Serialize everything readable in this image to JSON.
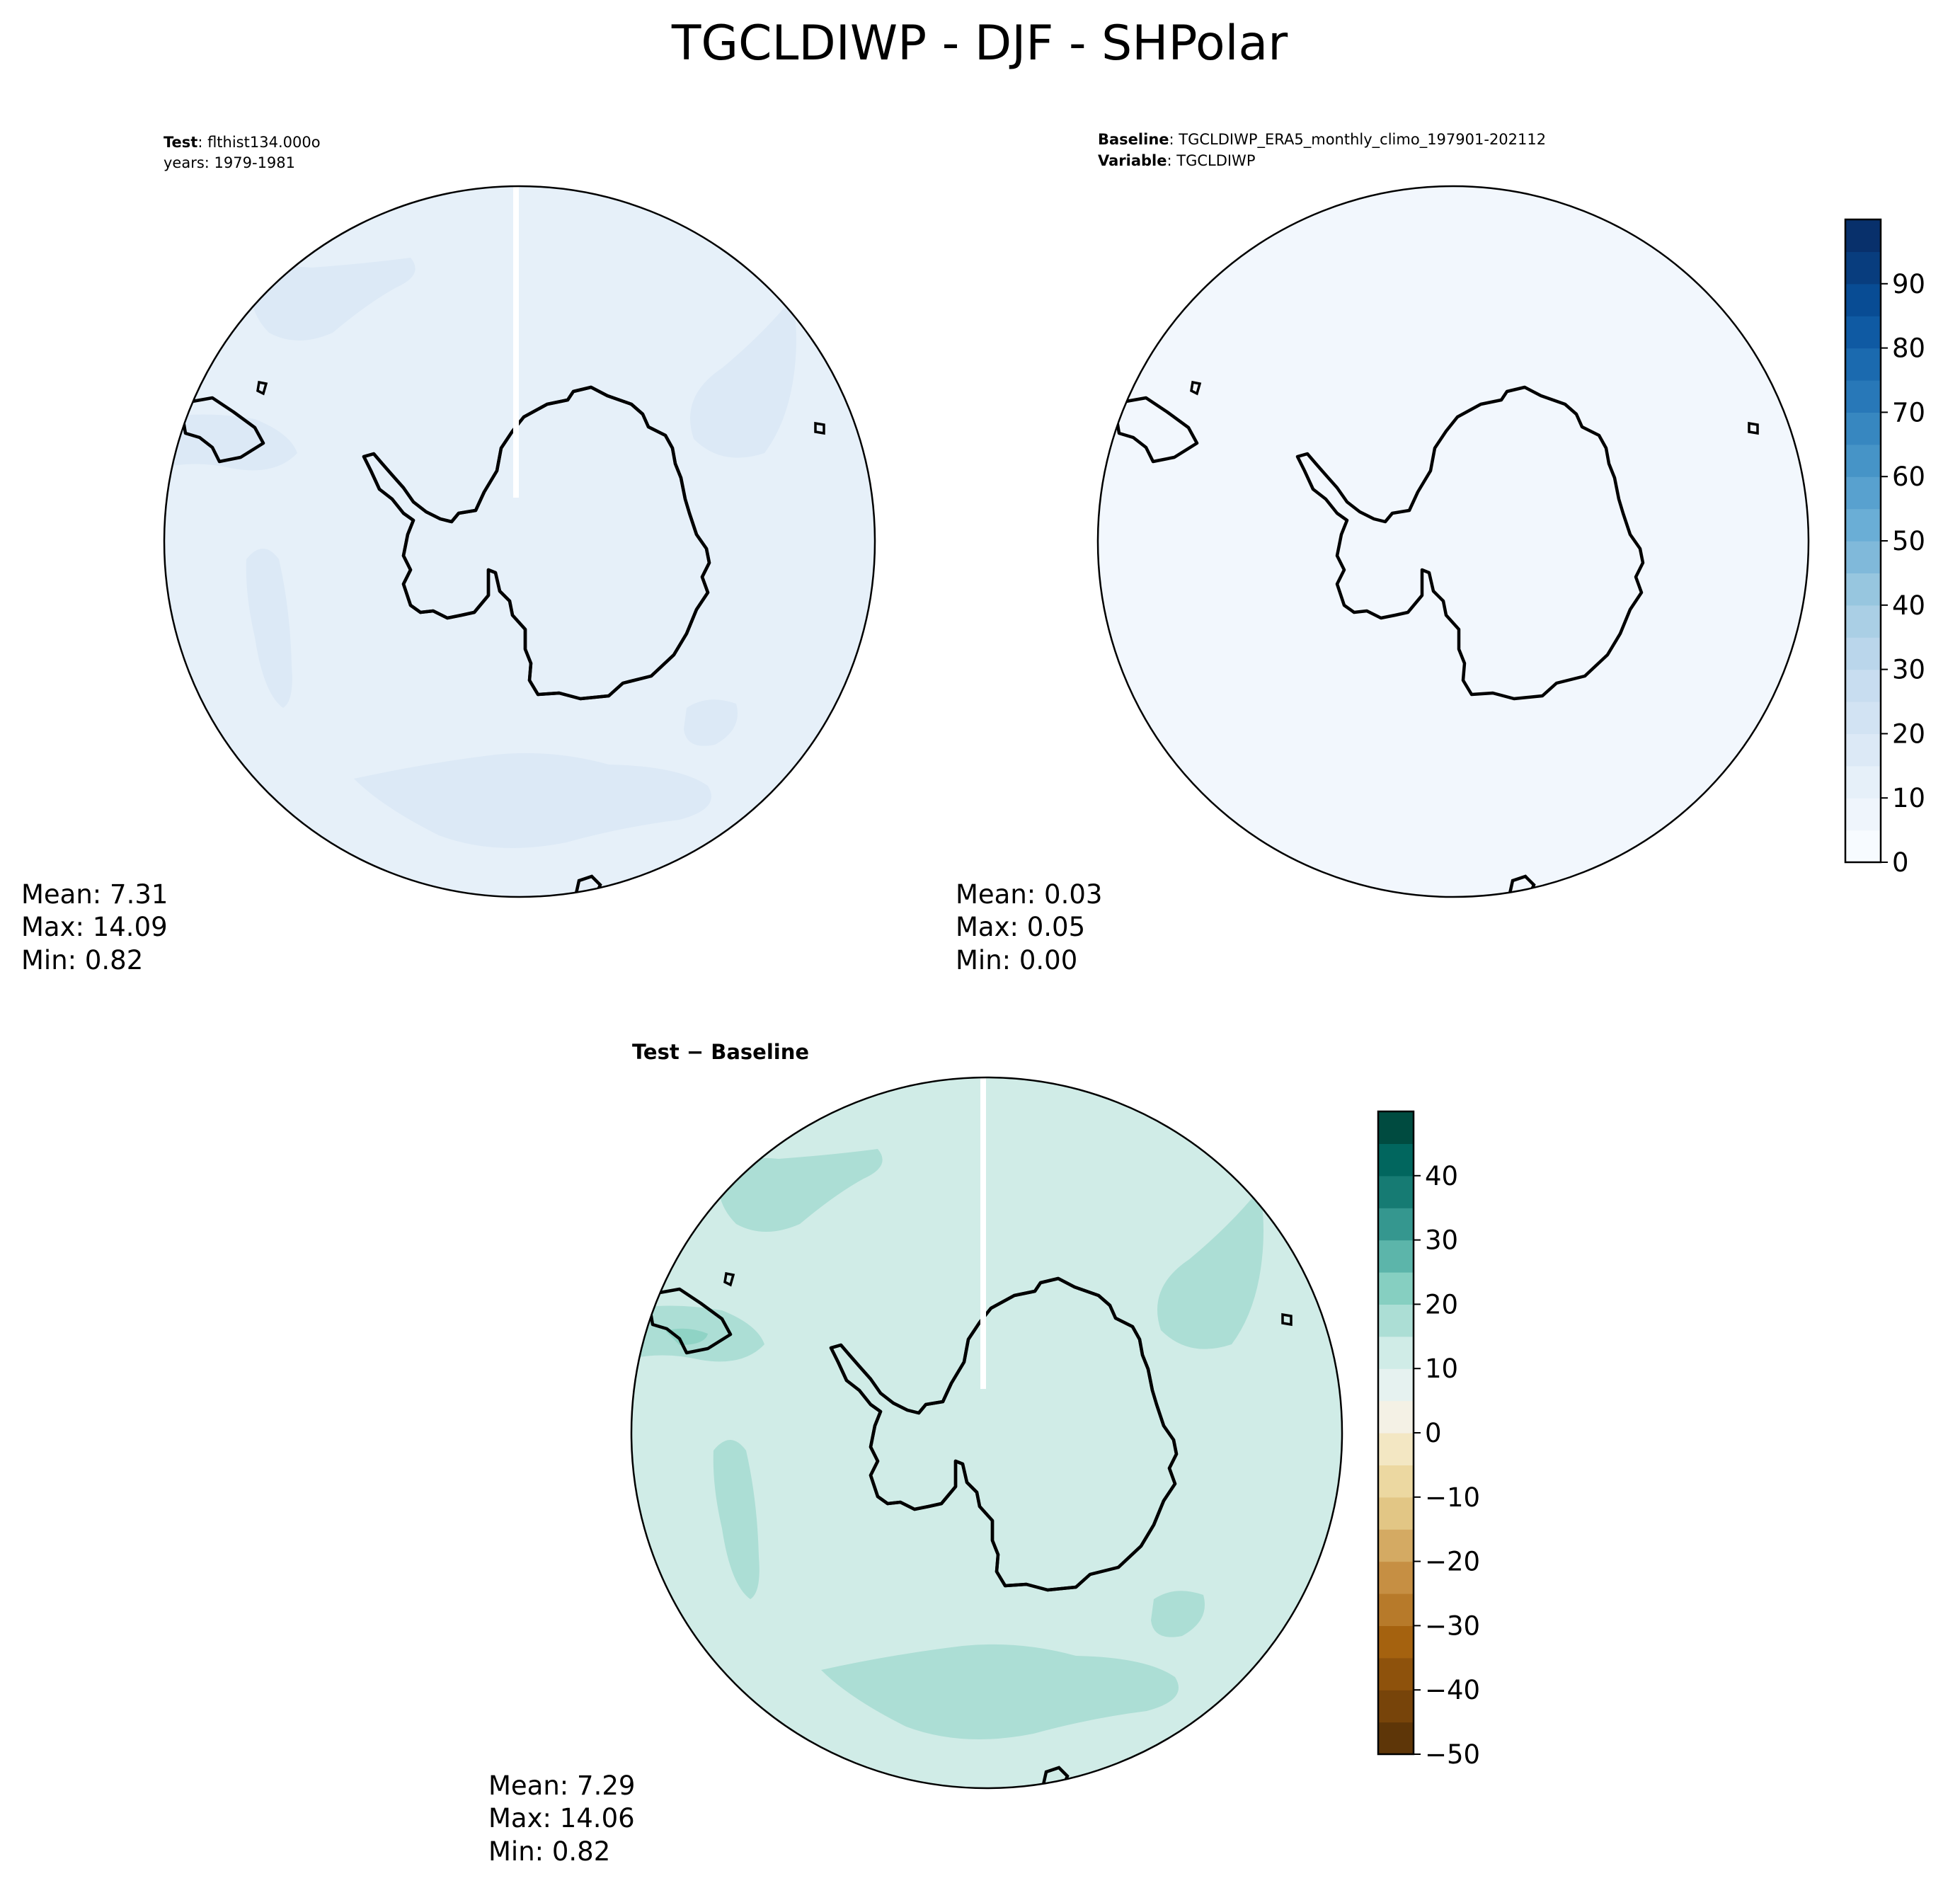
{
  "figure": {
    "title": "TGCLDIWP - DJF - SHPolar"
  },
  "panels": {
    "test": {
      "label_bold": "Test",
      "line1": ": flthist134.000o",
      "line2": "years: 1979-1981",
      "stats": {
        "mean": "Mean:  7.31",
        "max": "Max: 14.09",
        "min": "Min:  0.82"
      },
      "colors": {
        "ocean": "#e6f0f9",
        "patch": "#dce9f6",
        "land": "#eef4fb"
      }
    },
    "baseline": {
      "label_bold": "Baseline",
      "line1": ": TGCLDIWP_ERA5_monthly_climo_197901-202112",
      "label2_bold": "Variable",
      "line2": ": TGCLDIWP",
      "stats": {
        "mean": "Mean:  0.03",
        "max": "Max:  0.05",
        "min": "Min:  0.00"
      },
      "colors": {
        "field": "#f2f7fd"
      }
    },
    "diff": {
      "title": "Test − Baseline",
      "stats": {
        "mean": "Mean:  7.29",
        "max": "Max: 14.06",
        "min": "Min:  0.82"
      },
      "colors": {
        "ocean": "#d0ece7",
        "patch": "#acded5",
        "patch_dark": "#8fd3c5",
        "land": "#e6f2f0"
      }
    }
  },
  "colorbars": {
    "blues": {
      "ticks": [
        "0",
        "10",
        "20",
        "30",
        "40",
        "50",
        "60",
        "70",
        "80",
        "90"
      ],
      "colors": [
        "#f7fbff",
        "#eff5fc",
        "#e6f0f9",
        "#dce9f6",
        "#d2e3f3",
        "#c8ddf0",
        "#bad6eb",
        "#aacfe5",
        "#97c6df",
        "#80b9da",
        "#6aaed6",
        "#58a1cf",
        "#4694c7",
        "#3787c0",
        "#2878b8",
        "#1b6aaf",
        "#0f5aa3",
        "#084c94",
        "#083d7e",
        "#08306b"
      ]
    },
    "brbg": {
      "ticks": [
        "−50",
        "−40",
        "−30",
        "−20",
        "−10",
        "0",
        "10",
        "20",
        "30",
        "40"
      ],
      "colors": [
        "#5e3608",
        "#77440a",
        "#8e520c",
        "#a5620f",
        "#b77a2a",
        "#c68f43",
        "#d4aa63",
        "#e2c685",
        "#ecd8a1",
        "#f3e7c3",
        "#f4f1e5",
        "#e6f2f0",
        "#d0ece7",
        "#acded5",
        "#86cfc1",
        "#5cb5aa",
        "#35978f",
        "#167b73",
        "#01665e",
        "#004b40"
      ]
    }
  }
}
